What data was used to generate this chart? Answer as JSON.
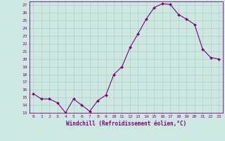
{
  "x_values": [
    0,
    1,
    2,
    3,
    4,
    5,
    6,
    7,
    8,
    9,
    10,
    11,
    12,
    13,
    14,
    15,
    16,
    17,
    18,
    19,
    20,
    21,
    22,
    23
  ],
  "y_values": [
    15.5,
    14.8,
    14.8,
    14.3,
    13.0,
    14.8,
    14.0,
    13.2,
    14.6,
    15.3,
    18.0,
    19.0,
    21.5,
    23.3,
    25.2,
    26.7,
    27.2,
    27.1,
    25.8,
    25.2,
    24.5,
    21.3,
    20.2,
    20.0
  ],
  "line_color": "#800080",
  "marker": "D",
  "marker_size": 2,
  "bg_color": "#cce8e0",
  "grid_color": "#aaccbb",
  "xlim": [
    -0.5,
    23.5
  ],
  "ylim": [
    13,
    27.5
  ],
  "yticks": [
    13,
    14,
    15,
    16,
    17,
    18,
    19,
    20,
    21,
    22,
    23,
    24,
    25,
    26,
    27
  ],
  "xtick_labels": [
    "0",
    "1",
    "2",
    "3",
    "4",
    "5",
    "6",
    "7",
    "8",
    "9",
    "10",
    "11",
    "12",
    "13",
    "14",
    "15",
    "16",
    "17",
    "18",
    "19",
    "20",
    "21",
    "22",
    "23"
  ],
  "xlabel": "Windchill (Refroidissement éolien,°C)",
  "xlabel_color": "#800080",
  "tick_color": "#800080",
  "spine_color": "#800080",
  "label_fontsize": 5.5,
  "tick_fontsize": 4.5
}
